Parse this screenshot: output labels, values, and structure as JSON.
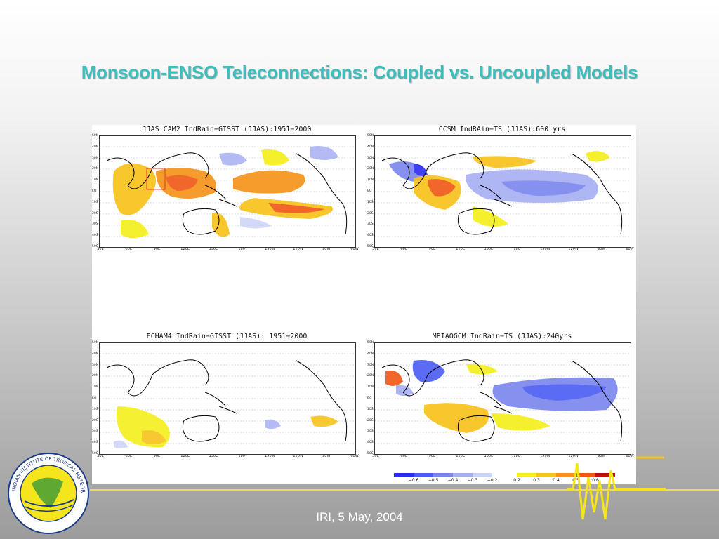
{
  "slide": {
    "title": "Monsoon-ENSO Teleconnections: Coupled vs. Uncoupled Models",
    "footer": "IRI, 5 May, 2004",
    "accent_color": "#3fbdbd"
  },
  "panels": [
    {
      "id": "cam2",
      "title": "JJAS CAM2 IndRain−GISST (JJAS):1951−2000"
    },
    {
      "id": "ccsm",
      "title": "CCSM IndRAin−TS (JJAS):600 yrs"
    },
    {
      "id": "echam4",
      "title": "ECHAM4 IndRain−GISST (JJAS): 1951−2000"
    },
    {
      "id": "mpiaogcm",
      "title": "MPIAOGCM IndRain−TS (JJAS):240yrs"
    }
  ],
  "map_axes": {
    "lat_labels": [
      "50N",
      "40N",
      "30N",
      "20N",
      "10N",
      "EQ",
      "10S",
      "20S",
      "30S",
      "40S",
      "50S"
    ],
    "lon_labels": [
      "30E",
      "60E",
      "90E",
      "120E",
      "150E",
      "180",
      "150W",
      "120W",
      "90W",
      "60W"
    ]
  },
  "colorbar": {
    "negative_ticks": [
      "−0.6",
      "−0.5",
      "−0.4",
      "−0.3",
      "−0.2"
    ],
    "positive_ticks": [
      "0.2",
      "0.3",
      "0.4",
      "0.5",
      "0.6"
    ],
    "negative_colors": [
      "#2a2cf0",
      "#4a5cf2",
      "#7a86ee",
      "#a6aef2",
      "#cdd2f7"
    ],
    "positive_colors": [
      "#f5ef1c",
      "#f7c31c",
      "#f5941c",
      "#ef5a1a",
      "#c01010"
    ]
  },
  "logo": {
    "text": "INDIAN INSTITUTE OF TROPICAL METEOROLOGY PUNE"
  }
}
